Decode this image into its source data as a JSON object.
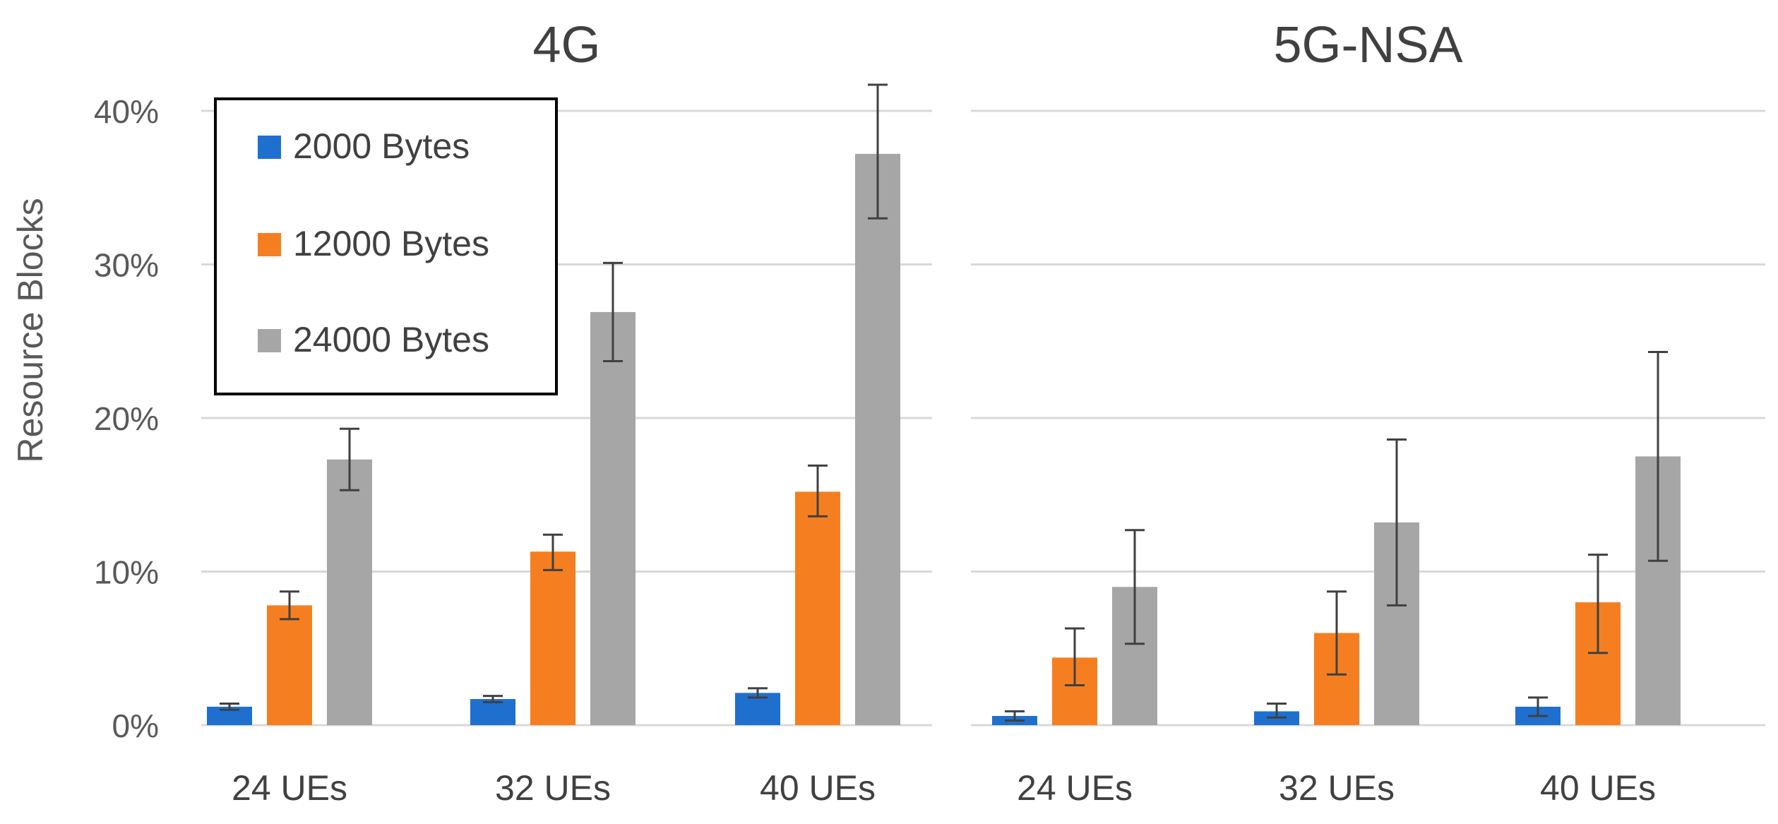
{
  "chart_data": {
    "type": "bar",
    "ylabel": "Resource Blocks",
    "ylim": [
      0,
      40
    ],
    "yticks": [
      0,
      10,
      20,
      30,
      40
    ],
    "ytick_format": "{v}%",
    "grid": true,
    "legend_position": "top-left",
    "legend": [
      {
        "name": "2000 Bytes",
        "color": "#1f6fcf"
      },
      {
        "name": "12000 Bytes",
        "color": "#f57f20"
      },
      {
        "name": "24000 Bytes",
        "color": "#a6a6a6"
      }
    ],
    "panels": [
      {
        "title": "4G",
        "categories": [
          "24 UEs",
          "32 UEs",
          "40 UEs"
        ],
        "series": [
          {
            "name": "2000 Bytes",
            "values": [
              1.2,
              1.7,
              2.1
            ],
            "err_low": [
              1.0,
              1.5,
              1.8
            ],
            "err_high": [
              1.4,
              1.9,
              2.4
            ]
          },
          {
            "name": "12000 Bytes",
            "values": [
              7.8,
              11.3,
              15.2
            ],
            "err_low": [
              6.9,
              10.1,
              13.6
            ],
            "err_high": [
              8.7,
              12.4,
              16.9
            ]
          },
          {
            "name": "24000 Bytes",
            "values": [
              17.3,
              26.9,
              37.2
            ],
            "err_low": [
              15.3,
              23.7,
              33.0
            ],
            "err_high": [
              19.3,
              30.1,
              41.7
            ]
          }
        ]
      },
      {
        "title": "5G-NSA",
        "categories": [
          "24 UEs",
          "32 UEs",
          "40 UEs"
        ],
        "series": [
          {
            "name": "2000 Bytes",
            "values": [
              0.6,
              0.9,
              1.2
            ],
            "err_low": [
              0.3,
              0.5,
              0.6
            ],
            "err_high": [
              0.9,
              1.4,
              1.8
            ]
          },
          {
            "name": "12000 Bytes",
            "values": [
              4.4,
              6.0,
              8.0
            ],
            "err_low": [
              2.6,
              3.3,
              4.7
            ],
            "err_high": [
              6.3,
              8.7,
              11.1
            ]
          },
          {
            "name": "24000 Bytes",
            "values": [
              9.0,
              13.2,
              17.5
            ],
            "err_low": [
              5.3,
              7.8,
              10.7
            ],
            "err_high": [
              12.7,
              18.6,
              24.3
            ]
          }
        ]
      }
    ]
  }
}
